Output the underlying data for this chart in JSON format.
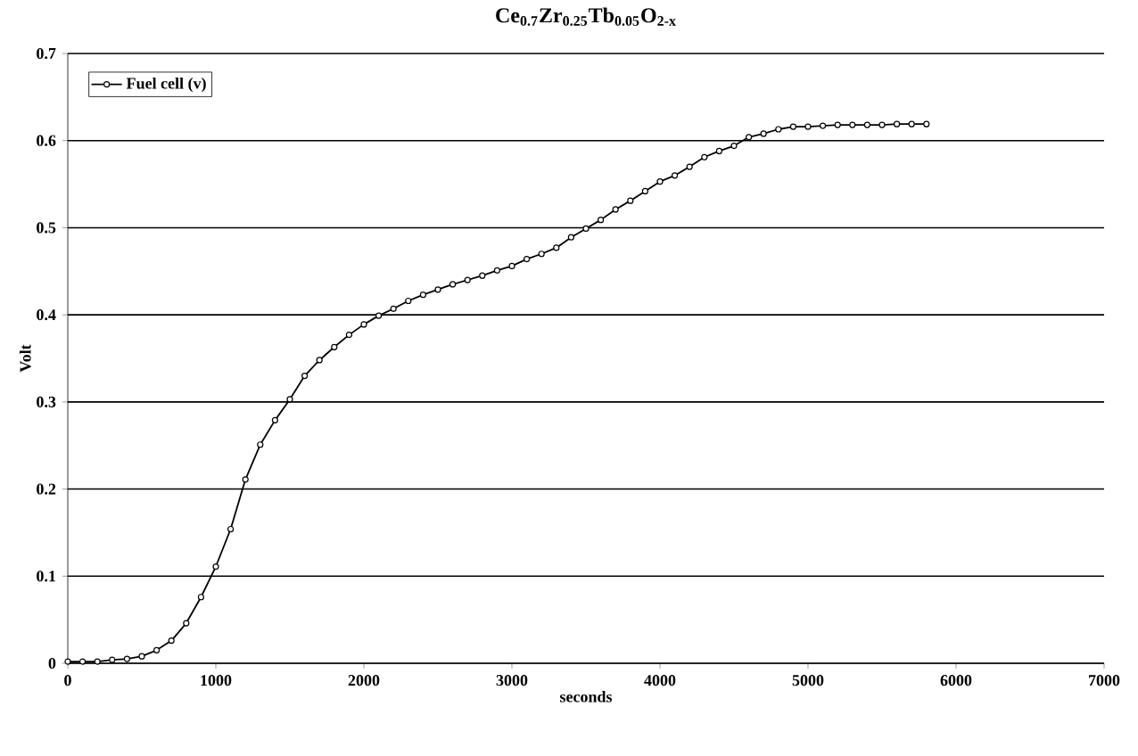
{
  "chart_data": {
    "type": "line",
    "title": "Ce$_{0.7}$Zr$_{0.25}$Tb$_{0.05}$O$_{2-x}$",
    "xlabel": "seconds",
    "ylabel": "Volt",
    "x": [
      0,
      100,
      200,
      300,
      400,
      500,
      600,
      700,
      800,
      900,
      1000,
      1100,
      1200,
      1300,
      1400,
      1500,
      1600,
      1700,
      1800,
      1900,
      2000,
      2100,
      2200,
      2300,
      2400,
      2500,
      2600,
      2700,
      2800,
      2900,
      3000,
      3100,
      3200,
      3300,
      3400,
      3500,
      3600,
      3700,
      3800,
      3900,
      4000,
      4100,
      4200,
      4300,
      4400,
      4500,
      4600,
      4700,
      4800,
      4900,
      5000,
      5100,
      5200,
      5300,
      5400,
      5500,
      5600,
      5700,
      5800
    ],
    "series": [
      {
        "name": "Fuel cell (v)",
        "color": "#000000",
        "values": [
          0.002,
          0.002,
          0.002,
          0.004,
          0.005,
          0.008,
          0.015,
          0.026,
          0.046,
          0.076,
          0.111,
          0.154,
          0.211,
          0.251,
          0.279,
          0.303,
          0.33,
          0.348,
          0.363,
          0.377,
          0.389,
          0.399,
          0.407,
          0.416,
          0.423,
          0.429,
          0.435,
          0.44,
          0.445,
          0.451,
          0.456,
          0.464,
          0.47,
          0.477,
          0.489,
          0.499,
          0.509,
          0.521,
          0.531,
          0.542,
          0.553,
          0.56,
          0.57,
          0.581,
          0.588,
          0.594,
          0.604,
          0.608,
          0.613,
          0.616,
          0.616,
          0.617,
          0.618,
          0.618,
          0.618,
          0.618,
          0.619,
          0.619,
          0.619
        ]
      }
    ],
    "xlim": [
      0,
      7000
    ],
    "xticks": [
      0,
      1000,
      2000,
      3000,
      4000,
      5000,
      6000,
      7000
    ],
    "ylim": [
      0,
      0.7
    ],
    "yticks": [
      0,
      0.1,
      0.2,
      0.3,
      0.4,
      0.5,
      0.6,
      0.7
    ],
    "grid": "y",
    "legend": "top left",
    "marker": "circle",
    "line_style": "solid"
  }
}
